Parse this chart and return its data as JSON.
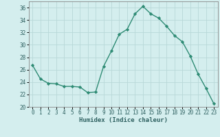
{
  "x": [
    0,
    1,
    2,
    3,
    4,
    5,
    6,
    7,
    8,
    9,
    10,
    11,
    12,
    13,
    14,
    15,
    16,
    17,
    18,
    19,
    20,
    21,
    22,
    23
  ],
  "y": [
    26.7,
    24.5,
    23.8,
    23.7,
    23.3,
    23.3,
    23.2,
    22.3,
    22.4,
    26.5,
    29.0,
    31.7,
    32.5,
    35.0,
    36.2,
    35.0,
    34.3,
    33.0,
    31.5,
    30.5,
    28.2,
    25.3,
    23.0,
    20.5
  ],
  "line_color": "#2e8b74",
  "marker": "D",
  "marker_size": 2.2,
  "bg_color": "#d4eeee",
  "grid_color": "#b8d8d8",
  "xlabel": "Humidex (Indice chaleur)",
  "xlim": [
    -0.5,
    23.5
  ],
  "ylim": [
    20,
    37
  ],
  "yticks": [
    20,
    22,
    24,
    26,
    28,
    30,
    32,
    34,
    36
  ],
  "xticks": [
    0,
    1,
    2,
    3,
    4,
    5,
    6,
    7,
    8,
    9,
    10,
    11,
    12,
    13,
    14,
    15,
    16,
    17,
    18,
    19,
    20,
    21,
    22,
    23
  ],
  "tick_fontsize": 5.5,
  "label_fontsize": 6.5,
  "line_width": 1.0
}
